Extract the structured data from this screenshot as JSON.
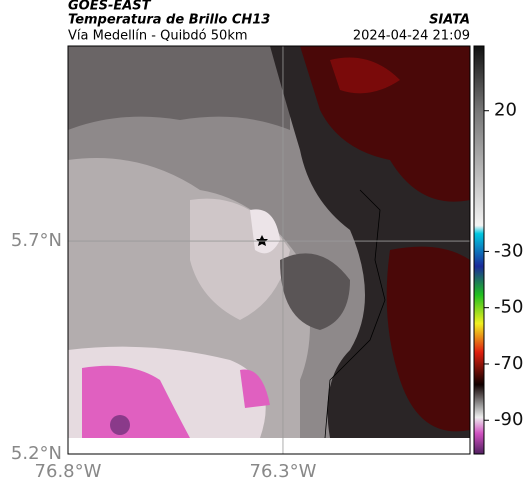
{
  "header": {
    "source": "GOES-EAST",
    "title": "Temperatura de Brillo CH13",
    "subtitle": "Vía Medellín - Quibdó 50km",
    "credit": "SIATA",
    "timestamp": "2024-04-24 21:09"
  },
  "map": {
    "lonlim": [
      -76.8,
      -75.865
    ],
    "latlim": [
      5.2,
      6.158
    ],
    "lon_ticks": [
      {
        "value": -76.8,
        "label": "76.8°W"
      },
      {
        "value": -76.3,
        "label": "76.3°W"
      }
    ],
    "lat_ticks": [
      {
        "value": 5.2,
        "label": "5.2°N"
      },
      {
        "value": 5.7,
        "label": "5.7°N"
      }
    ],
    "grid": true,
    "colorbar": {
      "lim": [
        -102,
        43
      ],
      "ticks": [
        20,
        -30,
        -50,
        -70,
        -90
      ]
    }
  }
}
